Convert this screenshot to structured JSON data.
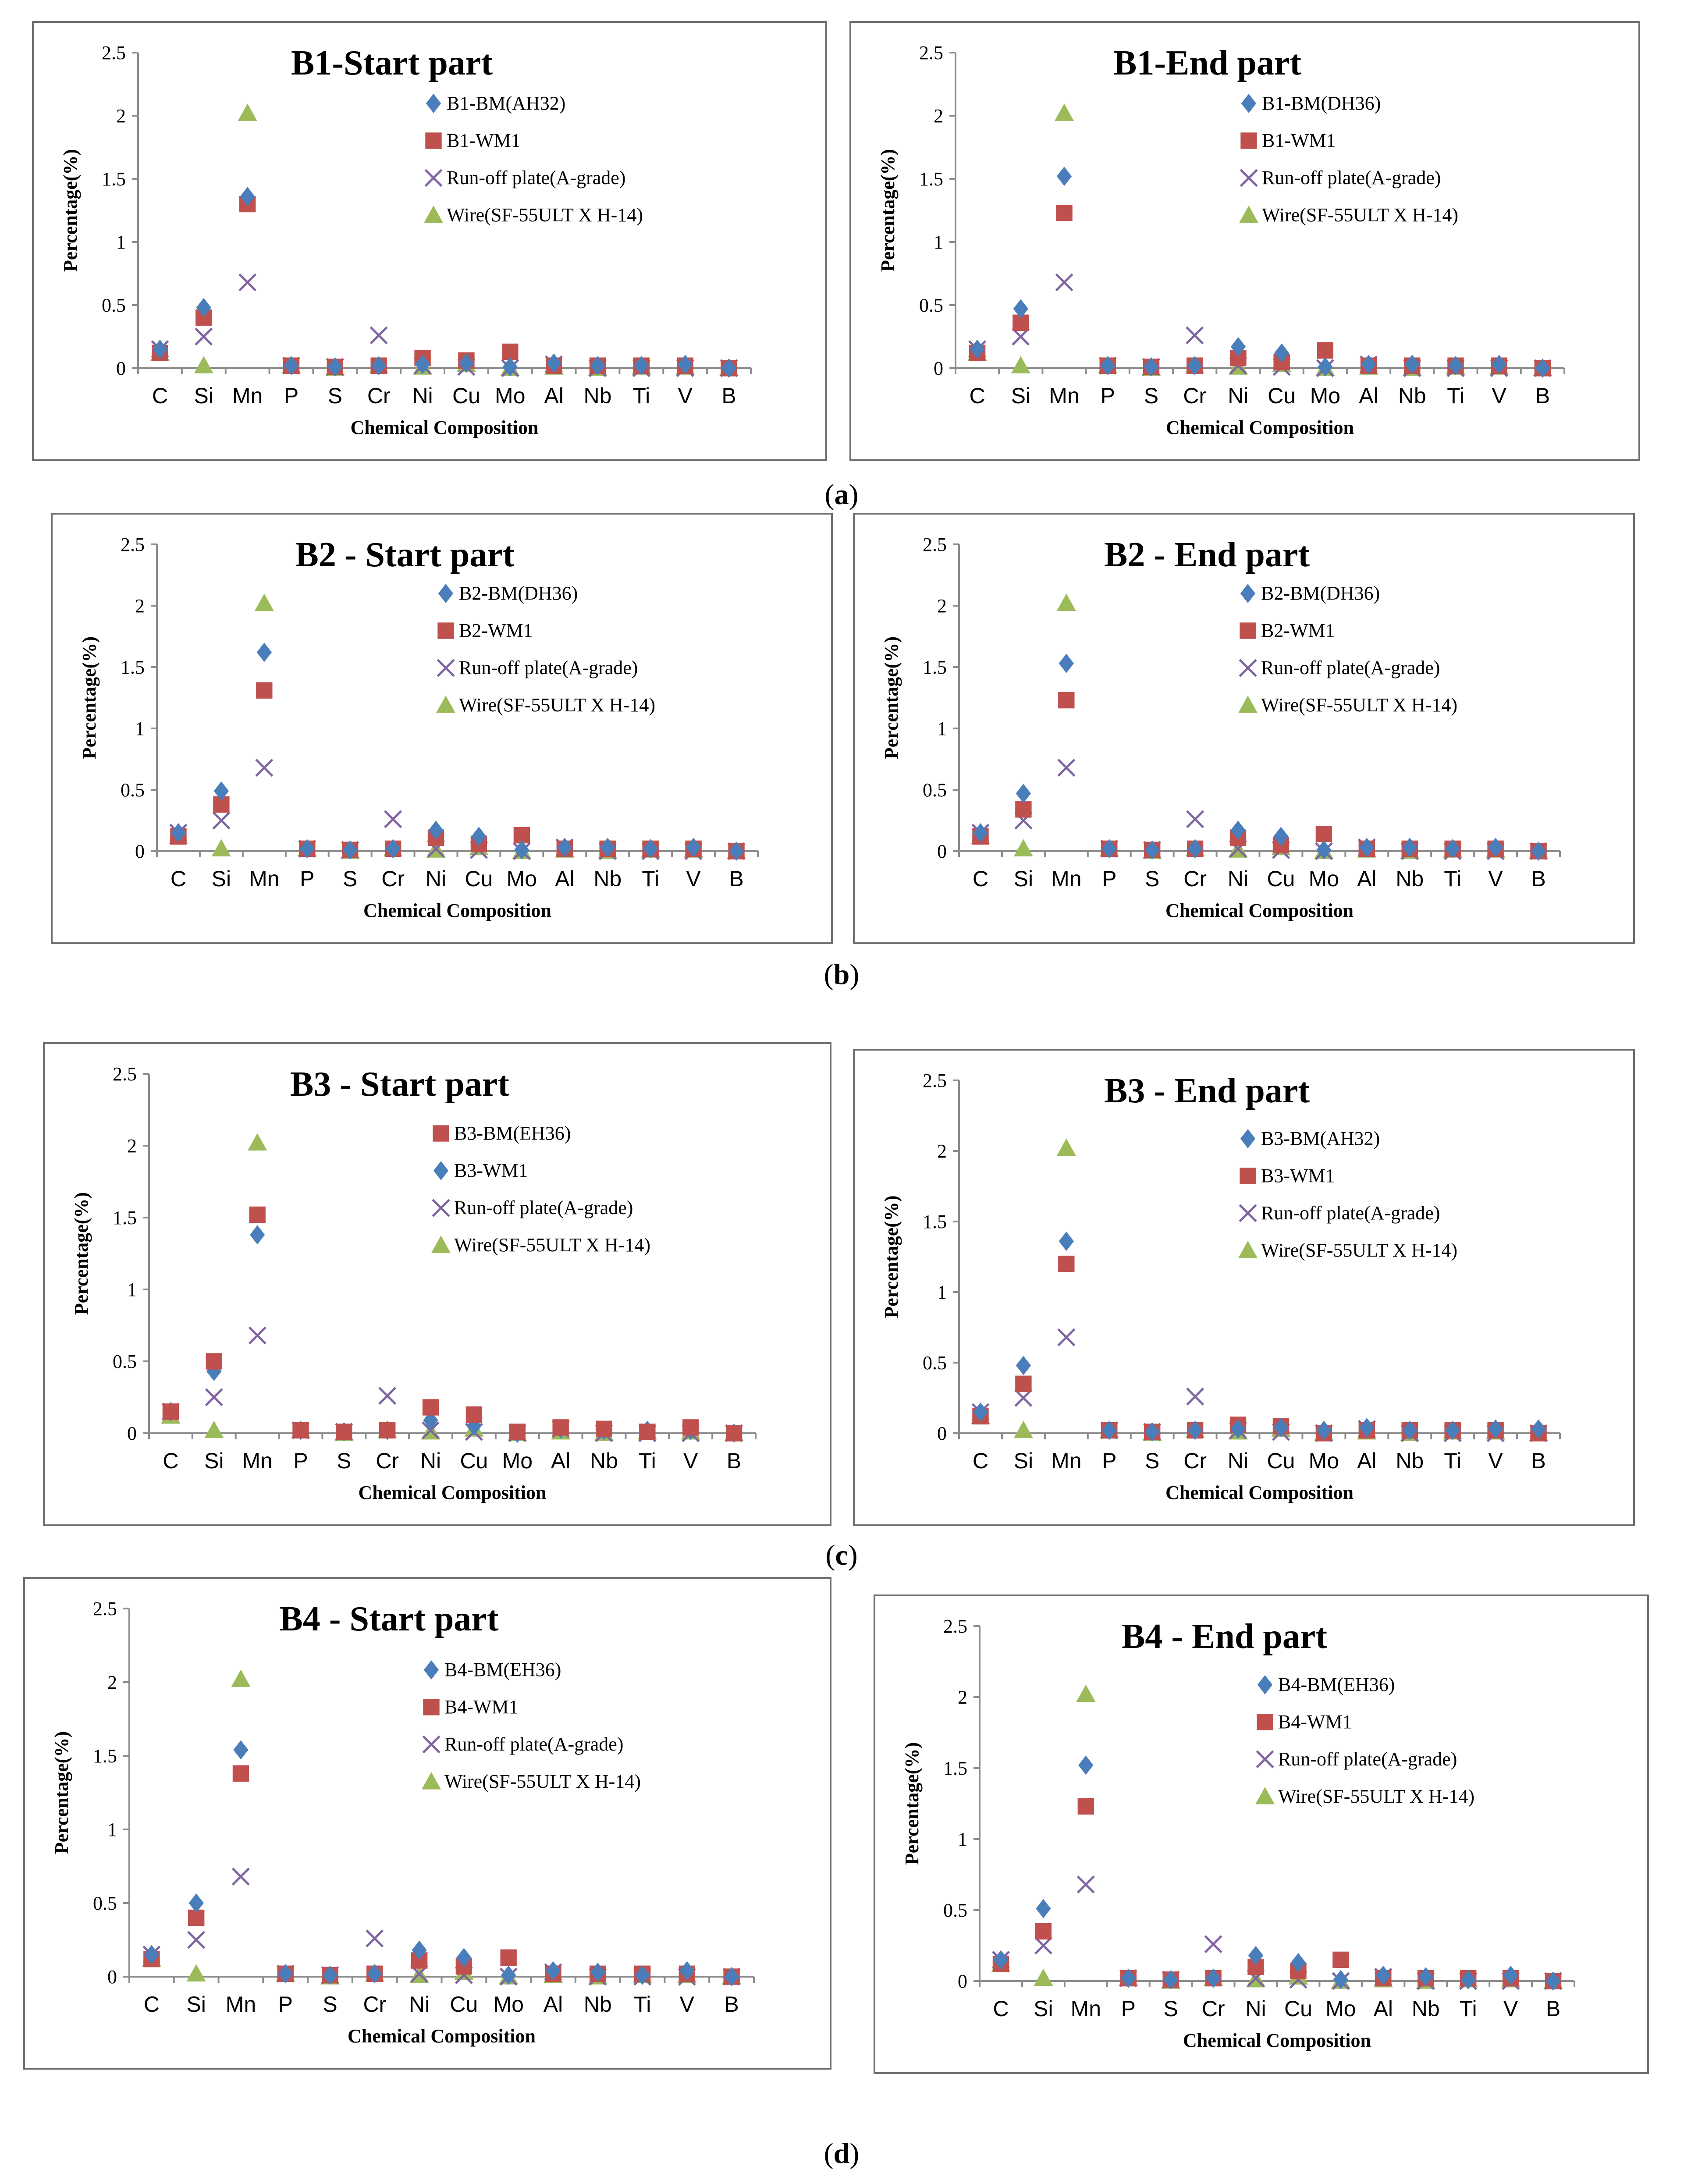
{
  "figure": {
    "captions": [
      "a",
      "b",
      "c",
      "d"
    ]
  },
  "colors": {
    "diamond": "#4a7ebb",
    "square": "#c0504d",
    "cross": "#8064a2",
    "triangle": "#9bbb59"
  },
  "chart_data": [
    {
      "type": "scatter",
      "title": "B1-Start part",
      "xlabel": "Chemical Composition",
      "ylabel": "Percentage(%)",
      "ylim": [
        0,
        2.5
      ],
      "yticks": [
        "0",
        "0.5",
        "1",
        "1.5",
        "2",
        "2.5"
      ],
      "categories": [
        "C",
        "Si",
        "Mn",
        "P",
        "S",
        "Cr",
        "Ni",
        "Cu",
        "Mo",
        "Al",
        "Nb",
        "Ti",
        "V",
        "B"
      ],
      "legend_position": "right",
      "series": [
        {
          "name": "B1-BM(AH32)",
          "marker": "diamond",
          "values": [
            0.15,
            0.48,
            1.36,
            0.02,
            0.01,
            0.02,
            0.03,
            0.04,
            0.01,
            0.04,
            0.02,
            0.02,
            0.03,
            0.0
          ]
        },
        {
          "name": "B1-WM1",
          "marker": "square",
          "values": [
            0.12,
            0.4,
            1.3,
            0.02,
            0.01,
            0.02,
            0.08,
            0.06,
            0.13,
            0.02,
            0.02,
            0.02,
            0.02,
            0.0
          ]
        },
        {
          "name": "Run-off plate(A-grade)",
          "marker": "cross",
          "values": [
            0.15,
            0.25,
            0.68,
            0.02,
            0.01,
            0.26,
            0.02,
            0.01,
            0.0,
            0.03,
            0.0,
            0.0,
            0.0,
            0.0
          ]
        },
        {
          "name": "Wire(SF-55ULT X H-14)",
          "marker": "triangle",
          "values": [
            0.12,
            0.02,
            2.02,
            0.02,
            0.0,
            0.02,
            0.01,
            0.03,
            0.0,
            0.01,
            0.0,
            0.01,
            0.01,
            0.0
          ]
        }
      ]
    },
    {
      "type": "scatter",
      "title": "B1-End part",
      "xlabel": "Chemical Composition",
      "ylabel": "Percentage(%)",
      "ylim": [
        0,
        2.5
      ],
      "yticks": [
        "0",
        "0.5",
        "1",
        "1.5",
        "2",
        "2.5"
      ],
      "categories": [
        "C",
        "Si",
        "Mn",
        "P",
        "S",
        "Cr",
        "Ni",
        "Cu",
        "Mo",
        "Al",
        "Nb",
        "Ti",
        "V",
        "B"
      ],
      "legend_position": "right",
      "series": [
        {
          "name": "B1-BM(DH36)",
          "marker": "diamond",
          "values": [
            0.15,
            0.47,
            1.52,
            0.02,
            0.01,
            0.02,
            0.17,
            0.12,
            0.01,
            0.03,
            0.03,
            0.02,
            0.03,
            0.0
          ]
        },
        {
          "name": "B1-WM1",
          "marker": "square",
          "values": [
            0.12,
            0.36,
            1.23,
            0.02,
            0.01,
            0.02,
            0.08,
            0.05,
            0.14,
            0.02,
            0.02,
            0.02,
            0.02,
            0.0
          ]
        },
        {
          "name": "Run-off plate(A-grade)",
          "marker": "cross",
          "values": [
            0.15,
            0.25,
            0.68,
            0.02,
            0.01,
            0.26,
            0.02,
            0.01,
            0.0,
            0.03,
            0.0,
            0.0,
            0.0,
            0.0
          ]
        },
        {
          "name": "Wire(SF-55ULT X H-14)",
          "marker": "triangle",
          "values": [
            0.12,
            0.02,
            2.02,
            0.02,
            0.0,
            0.02,
            0.01,
            0.03,
            0.0,
            0.01,
            0.0,
            0.01,
            0.01,
            0.0
          ]
        }
      ]
    },
    {
      "type": "scatter",
      "title": "B2 - Start part",
      "xlabel": "Chemical Composition",
      "ylabel": "Percentage(%)",
      "ylim": [
        0,
        2.5
      ],
      "yticks": [
        "0",
        "0.5",
        "1",
        "1.5",
        "2",
        "2.5"
      ],
      "categories": [
        "C",
        "Si",
        "Mn",
        "P",
        "S",
        "Cr",
        "Ni",
        "Cu",
        "Mo",
        "Al",
        "Nb",
        "Ti",
        "V",
        "B"
      ],
      "legend_position": "right",
      "series": [
        {
          "name": "B2-BM(DH36)",
          "marker": "diamond",
          "values": [
            0.15,
            0.49,
            1.62,
            0.02,
            0.01,
            0.02,
            0.17,
            0.12,
            0.01,
            0.03,
            0.03,
            0.02,
            0.03,
            0.0
          ]
        },
        {
          "name": "B2-WM1",
          "marker": "square",
          "values": [
            0.12,
            0.38,
            1.31,
            0.02,
            0.01,
            0.02,
            0.11,
            0.06,
            0.13,
            0.02,
            0.02,
            0.02,
            0.02,
            0.0
          ]
        },
        {
          "name": "Run-off plate(A-grade)",
          "marker": "cross",
          "values": [
            0.15,
            0.25,
            0.68,
            0.02,
            0.01,
            0.26,
            0.02,
            0.01,
            0.0,
            0.03,
            0.0,
            0.0,
            0.0,
            0.0
          ]
        },
        {
          "name": "Wire(SF-55ULT X H-14)",
          "marker": "triangle",
          "values": [
            0.12,
            0.02,
            2.02,
            0.02,
            0.0,
            0.02,
            0.01,
            0.03,
            0.0,
            0.01,
            0.0,
            0.01,
            0.01,
            0.0
          ]
        }
      ]
    },
    {
      "type": "scatter",
      "title": "B2 - End part",
      "xlabel": "Chemical Composition",
      "ylabel": "Percentage(%)",
      "ylim": [
        0,
        2.5
      ],
      "yticks": [
        "0",
        "0.5",
        "1",
        "1.5",
        "2",
        "2.5"
      ],
      "categories": [
        "C",
        "Si",
        "Mn",
        "P",
        "S",
        "Cr",
        "Ni",
        "Cu",
        "Mo",
        "Al",
        "Nb",
        "Ti",
        "V",
        "B"
      ],
      "legend_position": "right",
      "series": [
        {
          "name": "B2-BM(DH36)",
          "marker": "diamond",
          "values": [
            0.15,
            0.47,
            1.53,
            0.02,
            0.01,
            0.02,
            0.17,
            0.12,
            0.01,
            0.03,
            0.03,
            0.02,
            0.03,
            0.0
          ]
        },
        {
          "name": "B2-WM1",
          "marker": "square",
          "values": [
            0.12,
            0.34,
            1.23,
            0.02,
            0.01,
            0.02,
            0.11,
            0.05,
            0.14,
            0.02,
            0.02,
            0.02,
            0.02,
            0.0
          ]
        },
        {
          "name": "Run-off plate(A-grade)",
          "marker": "cross",
          "values": [
            0.15,
            0.25,
            0.68,
            0.02,
            0.01,
            0.26,
            0.02,
            0.01,
            0.0,
            0.03,
            0.0,
            0.0,
            0.0,
            0.0
          ]
        },
        {
          "name": "Wire(SF-55ULT X H-14)",
          "marker": "triangle",
          "values": [
            0.12,
            0.02,
            2.02,
            0.02,
            0.0,
            0.02,
            0.01,
            0.03,
            0.0,
            0.01,
            0.0,
            0.01,
            0.01,
            0.0
          ]
        }
      ]
    },
    {
      "type": "scatter",
      "title": "B3 - Start part",
      "xlabel": "Chemical Composition",
      "ylabel": "Percentage(%)",
      "ylim": [
        0,
        2.5
      ],
      "yticks": [
        "0",
        "0.5",
        "1",
        "1.5",
        "2",
        "2.5"
      ],
      "categories": [
        "C",
        "Si",
        "Mn",
        "P",
        "S",
        "Cr",
        "Ni",
        "Cu",
        "Mo",
        "Al",
        "Nb",
        "Ti",
        "V",
        "B"
      ],
      "legend_position": "right",
      "series": [
        {
          "name": "B3-BM(EH36)",
          "marker": "square",
          "values": [
            0.15,
            0.5,
            1.52,
            0.02,
            0.01,
            0.02,
            0.18,
            0.13,
            0.01,
            0.04,
            0.03,
            0.01,
            0.04,
            0.0
          ]
        },
        {
          "name": "B3-WM1",
          "marker": "diamond",
          "values": [
            0.15,
            0.43,
            1.38,
            0.02,
            0.01,
            0.02,
            0.09,
            0.05,
            0.0,
            0.03,
            0.02,
            0.02,
            0.02,
            0.0
          ]
        },
        {
          "name": "Run-off plate(A-grade)",
          "marker": "cross",
          "values": [
            0.15,
            0.25,
            0.68,
            0.02,
            0.01,
            0.26,
            0.02,
            0.01,
            0.0,
            0.03,
            0.0,
            0.0,
            0.0,
            0.0
          ]
        },
        {
          "name": "Wire(SF-55ULT X H-14)",
          "marker": "triangle",
          "values": [
            0.12,
            0.02,
            2.02,
            0.02,
            0.0,
            0.02,
            0.01,
            0.03,
            0.0,
            0.01,
            0.0,
            0.01,
            0.01,
            0.0
          ]
        }
      ]
    },
    {
      "type": "scatter",
      "title": "B3 - End part",
      "xlabel": "Chemical Composition",
      "ylabel": "Percentage(%)",
      "ylim": [
        0,
        2.5
      ],
      "yticks": [
        "0",
        "0.5",
        "1",
        "1.5",
        "2",
        "2.5"
      ],
      "categories": [
        "C",
        "Si",
        "Mn",
        "P",
        "S",
        "Cr",
        "Ni",
        "Cu",
        "Mo",
        "Al",
        "Nb",
        "Ti",
        "V",
        "B"
      ],
      "legend_position": "right",
      "series": [
        {
          "name": "B3-BM(AH32)",
          "marker": "diamond",
          "values": [
            0.15,
            0.48,
            1.36,
            0.02,
            0.01,
            0.02,
            0.03,
            0.04,
            0.02,
            0.04,
            0.02,
            0.02,
            0.03,
            0.03
          ]
        },
        {
          "name": "B3-WM1",
          "marker": "square",
          "values": [
            0.12,
            0.35,
            1.2,
            0.02,
            0.01,
            0.02,
            0.06,
            0.05,
            0.0,
            0.02,
            0.02,
            0.02,
            0.02,
            0.0
          ]
        },
        {
          "name": "Run-off plate(A-grade)",
          "marker": "cross",
          "values": [
            0.15,
            0.25,
            0.68,
            0.02,
            0.01,
            0.26,
            0.02,
            0.01,
            0.0,
            0.03,
            0.0,
            0.0,
            0.0,
            0.0
          ]
        },
        {
          "name": "Wire(SF-55ULT X H-14)",
          "marker": "triangle",
          "values": [
            0.12,
            0.02,
            2.02,
            0.02,
            0.0,
            0.02,
            0.01,
            0.03,
            0.0,
            0.01,
            0.0,
            0.01,
            0.01,
            0.0
          ]
        }
      ]
    },
    {
      "type": "scatter",
      "title": "B4 - Start part",
      "xlabel": "Chemical Composition",
      "ylabel": "Percentage(%)",
      "ylim": [
        0,
        2.5
      ],
      "yticks": [
        "0",
        "0.5",
        "1",
        "1.5",
        "2",
        "2.5"
      ],
      "categories": [
        "C",
        "Si",
        "Mn",
        "P",
        "S",
        "Cr",
        "Ni",
        "Cu",
        "Mo",
        "Al",
        "Nb",
        "Ti",
        "V",
        "B"
      ],
      "legend_position": "right",
      "series": [
        {
          "name": "B4-BM(EH36)",
          "marker": "diamond",
          "values": [
            0.15,
            0.5,
            1.54,
            0.02,
            0.01,
            0.02,
            0.18,
            0.13,
            0.01,
            0.04,
            0.03,
            0.01,
            0.04,
            0.0
          ]
        },
        {
          "name": "B4-WM1",
          "marker": "square",
          "values": [
            0.12,
            0.4,
            1.38,
            0.02,
            0.01,
            0.02,
            0.11,
            0.07,
            0.13,
            0.02,
            0.02,
            0.02,
            0.02,
            0.0
          ]
        },
        {
          "name": "Run-off plate(A-grade)",
          "marker": "cross",
          "values": [
            0.15,
            0.25,
            0.68,
            0.02,
            0.01,
            0.26,
            0.02,
            0.01,
            0.0,
            0.03,
            0.0,
            0.0,
            0.0,
            0.0
          ]
        },
        {
          "name": "Wire(SF-55ULT X H-14)",
          "marker": "triangle",
          "values": [
            0.12,
            0.02,
            2.02,
            0.02,
            0.0,
            0.02,
            0.01,
            0.03,
            0.0,
            0.01,
            0.0,
            0.01,
            0.01,
            0.0
          ]
        }
      ]
    },
    {
      "type": "scatter",
      "title": "B4 - End part",
      "xlabel": "Chemical Composition",
      "ylabel": "Percentage(%)",
      "ylim": [
        0,
        2.5
      ],
      "yticks": [
        "0",
        "0.5",
        "1",
        "1.5",
        "2",
        "2.5"
      ],
      "categories": [
        "C",
        "Si",
        "Mn",
        "P",
        "S",
        "Cr",
        "Ni",
        "Cu",
        "Mo",
        "Al",
        "Nb",
        "Ti",
        "V",
        "B"
      ],
      "legend_position": "right",
      "series": [
        {
          "name": "B4-BM(EH36)",
          "marker": "diamond",
          "values": [
            0.15,
            0.51,
            1.52,
            0.02,
            0.01,
            0.02,
            0.18,
            0.13,
            0.01,
            0.04,
            0.03,
            0.01,
            0.04,
            0.0
          ]
        },
        {
          "name": "B4-WM1",
          "marker": "square",
          "values": [
            0.12,
            0.35,
            1.23,
            0.02,
            0.01,
            0.02,
            0.1,
            0.07,
            0.15,
            0.02,
            0.02,
            0.02,
            0.02,
            0.0
          ]
        },
        {
          "name": "Run-off plate(A-grade)",
          "marker": "cross",
          "values": [
            0.15,
            0.25,
            0.68,
            0.02,
            0.01,
            0.26,
            0.02,
            0.01,
            0.0,
            0.03,
            0.0,
            0.0,
            0.0,
            0.0
          ]
        },
        {
          "name": "Wire(SF-55ULT X H-14)",
          "marker": "triangle",
          "values": [
            0.12,
            0.02,
            2.02,
            0.02,
            0.0,
            0.02,
            0.01,
            0.03,
            0.0,
            0.01,
            0.0,
            0.01,
            0.01,
            0.0
          ]
        }
      ]
    }
  ]
}
